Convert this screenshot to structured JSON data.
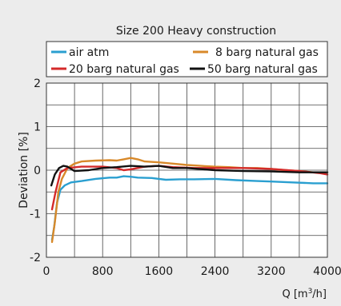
{
  "chart_data": {
    "type": "line",
    "title": "Size 200 Heavy construction",
    "xlabel": "Q [m³/h]",
    "xlabel_base": "Q [m",
    "xlabel_sup": "3",
    "xlabel_tail": "/h]",
    "ylabel": "Deviation [%]",
    "xlim": [
      0,
      4000
    ],
    "ylim": [
      -2,
      2
    ],
    "xticks": [
      0,
      800,
      1600,
      2400,
      3200,
      4000
    ],
    "yticks": [
      -2,
      -1,
      0,
      1,
      2
    ],
    "grid": true,
    "legend_position": "top",
    "series": [
      {
        "name": "air atm",
        "color": "#2a9fd0",
        "points": [
          [
            80,
            -1.6
          ],
          [
            110,
            -1.3
          ],
          [
            150,
            -0.75
          ],
          [
            200,
            -0.45
          ],
          [
            260,
            -0.35
          ],
          [
            350,
            -0.28
          ],
          [
            500,
            -0.25
          ],
          [
            700,
            -0.2
          ],
          [
            900,
            -0.17
          ],
          [
            1000,
            -0.17
          ],
          [
            1100,
            -0.14
          ],
          [
            1200,
            -0.15
          ],
          [
            1300,
            -0.17
          ],
          [
            1500,
            -0.18
          ],
          [
            1700,
            -0.22
          ],
          [
            1900,
            -0.21
          ],
          [
            2100,
            -0.21
          ],
          [
            2400,
            -0.2
          ],
          [
            2700,
            -0.23
          ],
          [
            3000,
            -0.25
          ],
          [
            3200,
            -0.26
          ],
          [
            3500,
            -0.28
          ],
          [
            3800,
            -0.3
          ],
          [
            4000,
            -0.3
          ]
        ]
      },
      {
        "name": "8 barg natural gas",
        "color": "#d8892a",
        "points": [
          [
            80,
            -1.65
          ],
          [
            120,
            -1.2
          ],
          [
            170,
            -0.5
          ],
          [
            220,
            -0.2
          ],
          [
            300,
            0.05
          ],
          [
            400,
            0.15
          ],
          [
            500,
            0.2
          ],
          [
            700,
            0.22
          ],
          [
            900,
            0.23
          ],
          [
            1000,
            0.22
          ],
          [
            1100,
            0.25
          ],
          [
            1200,
            0.28
          ],
          [
            1300,
            0.25
          ],
          [
            1400,
            0.2
          ],
          [
            1600,
            0.18
          ],
          [
            1800,
            0.15
          ],
          [
            2000,
            0.12
          ],
          [
            2200,
            0.1
          ],
          [
            2400,
            0.08
          ],
          [
            2600,
            0.07
          ],
          [
            2800,
            0.05
          ],
          [
            3000,
            0.05
          ],
          [
            3200,
            0.03
          ],
          [
            3400,
            0.0
          ],
          [
            3600,
            -0.02
          ],
          [
            3800,
            -0.05
          ],
          [
            4000,
            -0.05
          ]
        ]
      },
      {
        "name": "20 barg natural gas",
        "color": "#d42a2a",
        "points": [
          [
            80,
            -0.9
          ],
          [
            130,
            -0.5
          ],
          [
            200,
            -0.05
          ],
          [
            300,
            0.05
          ],
          [
            500,
            0.08
          ],
          [
            800,
            0.08
          ],
          [
            1000,
            0.05
          ],
          [
            1100,
            0.0
          ],
          [
            1200,
            0.02
          ],
          [
            1400,
            0.08
          ],
          [
            1600,
            0.1
          ],
          [
            1800,
            0.07
          ],
          [
            2100,
            0.05
          ],
          [
            2400,
            0.05
          ],
          [
            2800,
            0.05
          ],
          [
            3200,
            0.03
          ],
          [
            3600,
            -0.02
          ],
          [
            3900,
            -0.07
          ],
          [
            4000,
            -0.1
          ]
        ]
      },
      {
        "name": "50 barg natural gas",
        "color": "#111111",
        "points": [
          [
            70,
            -0.35
          ],
          [
            120,
            -0.1
          ],
          [
            180,
            0.05
          ],
          [
            240,
            0.1
          ],
          [
            300,
            0.08
          ],
          [
            400,
            -0.02
          ],
          [
            600,
            0.0
          ],
          [
            800,
            0.05
          ],
          [
            1000,
            0.07
          ],
          [
            1200,
            0.1
          ],
          [
            1400,
            0.08
          ],
          [
            1600,
            0.1
          ],
          [
            1800,
            0.05
          ],
          [
            2000,
            0.05
          ],
          [
            2400,
            0.0
          ],
          [
            2800,
            -0.02
          ],
          [
            3200,
            -0.03
          ],
          [
            3600,
            -0.05
          ],
          [
            4000,
            -0.05
          ]
        ]
      }
    ]
  }
}
